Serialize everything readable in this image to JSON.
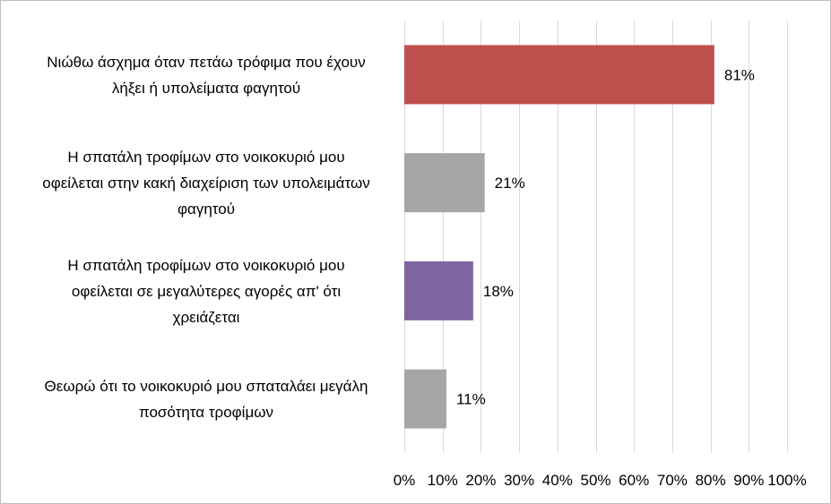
{
  "chart_data": {
    "type": "bar",
    "orientation": "horizontal",
    "categories": [
      [
        "Νιώθω άσχημα όταν πετάω τρόφιμα που έχουν",
        "λήξει ή υπολείματα φαγητού"
      ],
      [
        "Η σπατάλη τροφίμων στο νοικοκυριό μου",
        "οφείλεται στην κακή διαχείριση των υπολειμάτων",
        "φαγητού"
      ],
      [
        "Η σπατάλη τροφίμων στο νοικοκυριό μου",
        "οφείλεται σε μεγαλύτερες αγορές απ' ότι",
        "χρειάζεται"
      ],
      [
        "Θεωρώ ότι το νοικοκυριό μου σπαταλάει μεγάλη",
        "ποσότητα τροφίμων"
      ]
    ],
    "values": [
      81,
      21,
      18,
      11
    ],
    "data_labels": [
      "81%",
      "21%",
      "18%",
      "11%"
    ],
    "bar_colors": [
      "#c0504d",
      "#a6a6a6",
      "#8064a2",
      "#a6a6a6"
    ],
    "xlim": [
      0,
      100
    ],
    "x_ticks": [
      0,
      10,
      20,
      30,
      40,
      50,
      60,
      70,
      80,
      90,
      100
    ],
    "x_tick_labels": [
      "0%",
      "10%",
      "20%",
      "30%",
      "40%",
      "50%",
      "60%",
      "70%",
      "80%",
      "90%",
      "100%"
    ],
    "grid": true,
    "legend": "none"
  }
}
